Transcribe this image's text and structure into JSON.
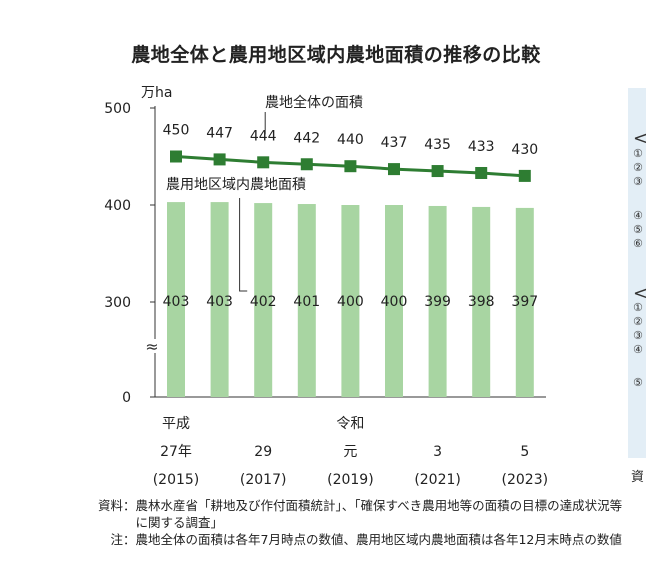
{
  "title": "農地全体と農用地区域内農地面積の推移の比較",
  "chart_data": {
    "type": "bar",
    "unit_label": "万ha",
    "categories": [
      "2015",
      "2016",
      "2017",
      "2018",
      "2019",
      "2020",
      "2021",
      "2022",
      "2023"
    ],
    "x_labels": [
      {
        "era": "平成",
        "year": "27年",
        "western": "(2015)"
      },
      {
        "era": "",
        "year": "",
        "western": ""
      },
      {
        "era": "",
        "year": "29",
        "western": "(2017)"
      },
      {
        "era": "",
        "year": "",
        "western": ""
      },
      {
        "era": "令和",
        "year": "元",
        "western": "(2019)"
      },
      {
        "era": "",
        "year": "",
        "western": ""
      },
      {
        "era": "",
        "year": "3",
        "western": "(2021)"
      },
      {
        "era": "",
        "year": "",
        "western": ""
      },
      {
        "era": "",
        "year": "5",
        "western": "(2023)"
      }
    ],
    "series": [
      {
        "name": "農地全体の面積",
        "kind": "line",
        "values": [
          450,
          447,
          444,
          442,
          440,
          437,
          435,
          433,
          430
        ],
        "color": "#2e7d32"
      },
      {
        "name": "農用地区域内農地面積",
        "kind": "bar",
        "values": [
          403,
          403,
          402,
          401,
          400,
          400,
          399,
          398,
          397
        ],
        "color": "#a8d5a2"
      }
    ],
    "y_ticks": [
      0,
      300,
      400,
      500
    ],
    "ylim": [
      0,
      500
    ],
    "axis_break": true,
    "axis_break_symbol": "≈",
    "grid": false
  },
  "side_panel": {
    "glyphs": [
      "<",
      "①",
      "②",
      "③",
      "④",
      "⑤",
      "⑥",
      "<",
      "①",
      "②",
      "③",
      "④",
      "⑤"
    ],
    "footer": "資"
  },
  "notes": [
    {
      "label": "資料：",
      "text": "農林水産省「耕地及び作付面積統計」、「確保すべき農用地等の面積の目標の達成状況等に関する調査」"
    },
    {
      "label": "　注：",
      "text": "農地全体の面積は各年7月時点の数値、農用地区域内農地面積は各年12月末時点の数値"
    }
  ]
}
